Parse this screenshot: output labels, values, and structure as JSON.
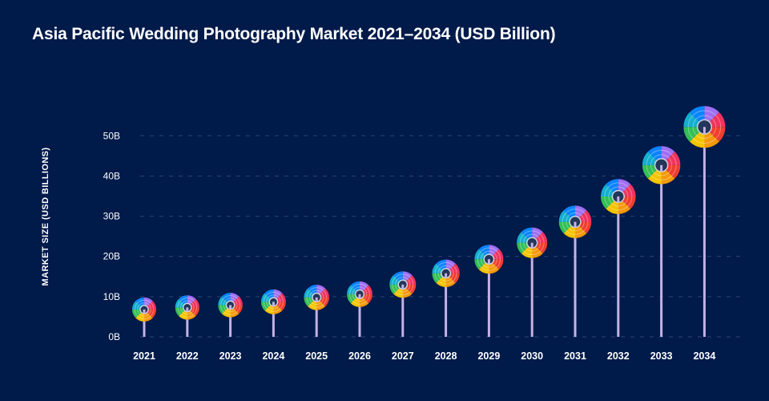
{
  "chart_data": {
    "type": "lollipop",
    "title": "Asia Pacific Wedding Photography Market 2021–2034 (USD Billion)",
    "xlabel": "",
    "ylabel": "MARKET SIZE (USD BILLIONS)",
    "categories": [
      "2021",
      "2022",
      "2023",
      "2024",
      "2025",
      "2026",
      "2027",
      "2028",
      "2029",
      "2030",
      "2031",
      "2032",
      "2033",
      "2034"
    ],
    "values": [
      6.8,
      7.3,
      7.9,
      8.7,
      9.8,
      10.6,
      13.0,
      15.8,
      19.3,
      23.4,
      28.6,
      34.9,
      42.7,
      52.2
    ],
    "ylim": [
      0,
      50
    ],
    "yticks": [
      0,
      10,
      20,
      30,
      40,
      50
    ],
    "ytick_labels": [
      "0B",
      "10B",
      "20B",
      "30B",
      "40B",
      "50B"
    ],
    "grid": true,
    "colors": {
      "background": "#001a4a",
      "stem": "#c3b3e6",
      "grid": "#2c4470",
      "segments": [
        "#a06ff2",
        "#f2335e",
        "#f23d2e",
        "#f5990c",
        "#f5c400",
        "#33bf55",
        "#13afd0",
        "#0a84ff"
      ]
    }
  }
}
